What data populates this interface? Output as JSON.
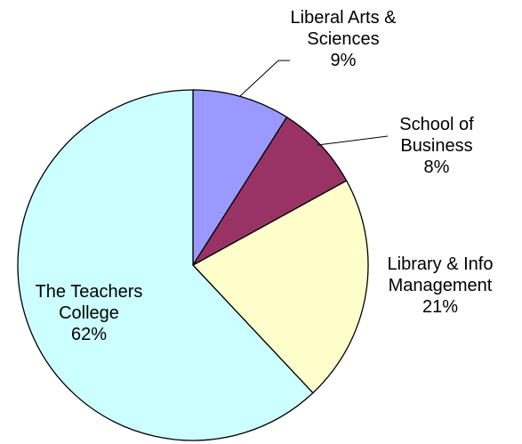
{
  "chart_data": {
    "type": "pie",
    "title": "",
    "start_angle_deg": 0,
    "direction": "clockwise",
    "slices": [
      {
        "label_lines": [
          "Liberal Arts &",
          "Sciences"
        ],
        "pct_text": "9%",
        "value": 9,
        "color": "#9999FF"
      },
      {
        "label_lines": [
          "School of",
          "Business"
        ],
        "pct_text": "8%",
        "value": 8,
        "color": "#993366"
      },
      {
        "label_lines": [
          "Library & Info",
          "Management"
        ],
        "pct_text": "21%",
        "value": 21,
        "color": "#FFFFCC"
      },
      {
        "label_lines": [
          "The Teachers",
          "College"
        ],
        "pct_text": "62%",
        "value": 62,
        "color": "#CCFFFF"
      }
    ]
  }
}
